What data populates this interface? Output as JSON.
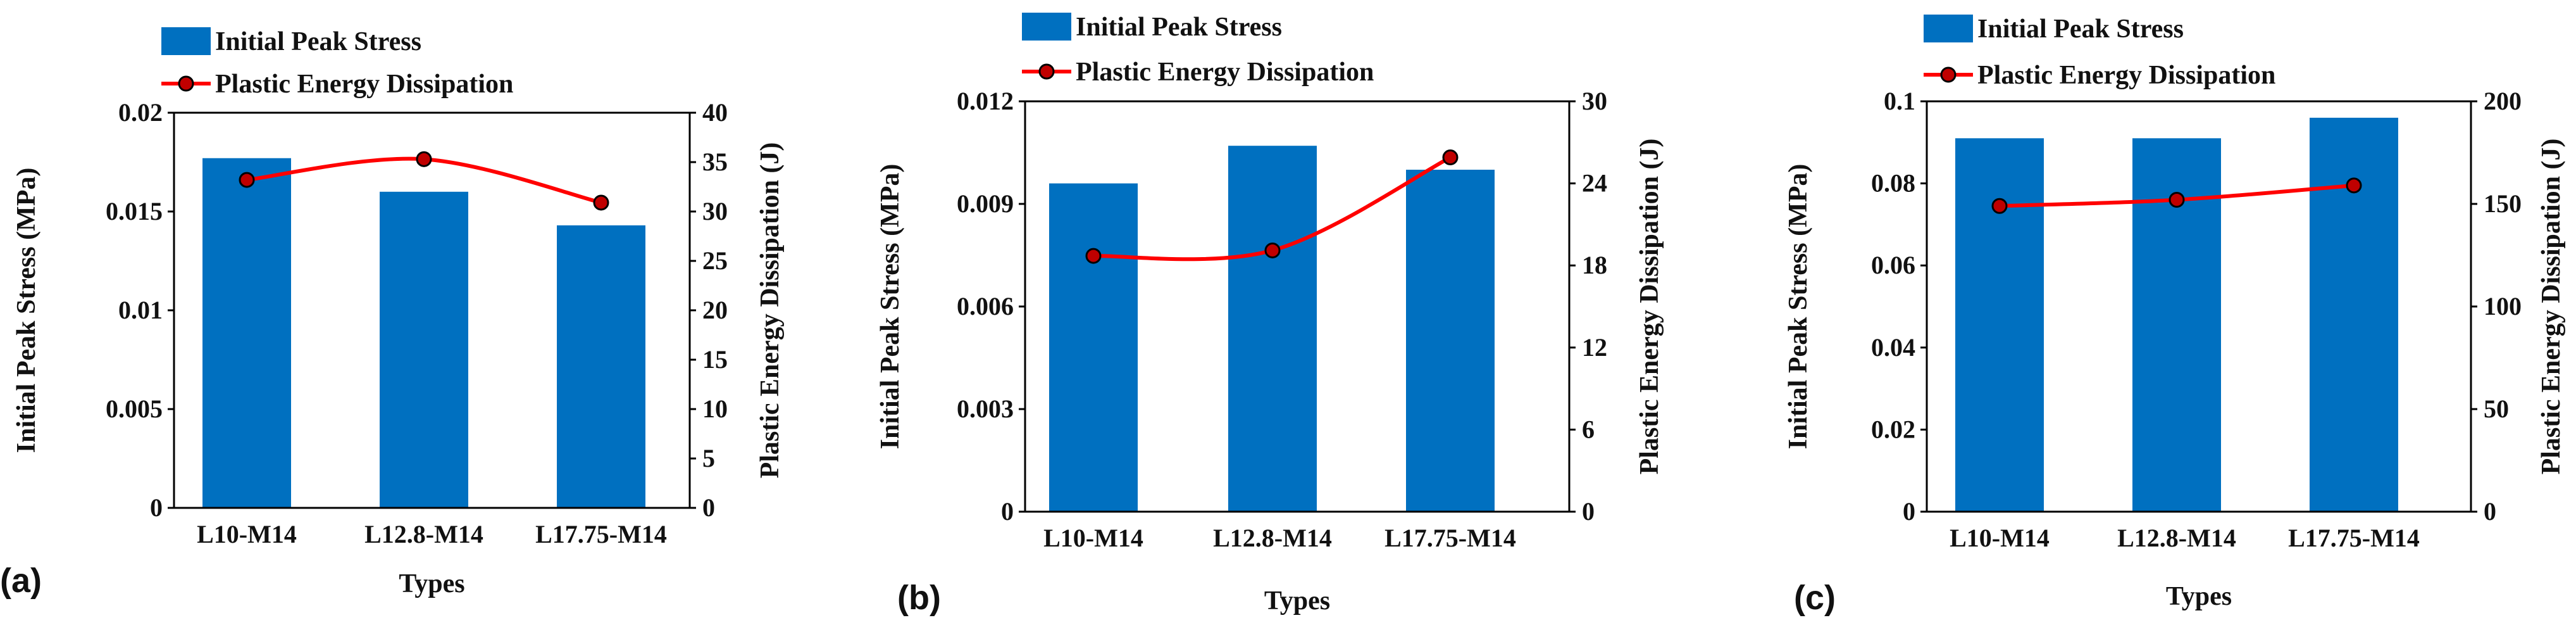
{
  "chart_data": [
    {
      "type": "bar",
      "panel_label": "(a)",
      "categories": [
        "L10-M14",
        "L12.8-M14",
        "L17.75-M14"
      ],
      "series": [
        {
          "name": "Initial Peak Stress",
          "kind": "bar",
          "axis": "left",
          "values": [
            0.0177,
            0.016,
            0.0143
          ]
        },
        {
          "name": "Plastic Energy Dissipation",
          "kind": "line",
          "axis": "right",
          "values": [
            33.2,
            35.3,
            30.9
          ]
        }
      ],
      "xlabel": "Types",
      "ylabel": "Initial Peak Stress (MPa)",
      "y2label": "Plastic Energy Dissipation (J)",
      "ylim": [
        0,
        0.02
      ],
      "y2lim": [
        0,
        40
      ],
      "yticks": [
        "0",
        "0.005",
        "0.01",
        "0.015",
        "0.02"
      ],
      "y2ticks": [
        "0",
        "5",
        "10",
        "15",
        "20",
        "25",
        "30",
        "35",
        "40"
      ],
      "grid": false,
      "legend": "top-left",
      "colors": {
        "bar": "#0070C0",
        "line": "#FF0000",
        "marker": "#C00000"
      }
    },
    {
      "type": "bar",
      "panel_label": "(b)",
      "categories": [
        "L10-M14",
        "L12.8-M14",
        "L17.75-M14"
      ],
      "series": [
        {
          "name": "Initial Peak Stress",
          "kind": "bar",
          "axis": "left",
          "values": [
            0.0096,
            0.0107,
            0.01
          ]
        },
        {
          "name": "Plastic Energy Dissipation",
          "kind": "line",
          "axis": "right",
          "values": [
            18.7,
            19.1,
            25.9
          ]
        }
      ],
      "xlabel": "Types",
      "ylabel": "Initial Peak Stress (MPa)",
      "y2label": "Plastic Energy Dissipation (J)",
      "ylim": [
        0,
        0.012
      ],
      "y2lim": [
        0,
        30
      ],
      "yticks": [
        "0",
        "0.003",
        "0.006",
        "0.009",
        "0.012"
      ],
      "y2ticks": [
        "0",
        "6",
        "12",
        "18",
        "24",
        "30"
      ],
      "grid": false,
      "legend": "top-left",
      "colors": {
        "bar": "#0070C0",
        "line": "#FF0000",
        "marker": "#C00000"
      }
    },
    {
      "type": "bar",
      "panel_label": "(c)",
      "categories": [
        "L10-M14",
        "L12.8-M14",
        "L17.75-M14"
      ],
      "series": [
        {
          "name": "Initial Peak Stress",
          "kind": "bar",
          "axis": "left",
          "values": [
            0.091,
            0.091,
            0.096
          ]
        },
        {
          "name": "Plastic Energy Dissipation",
          "kind": "line",
          "axis": "right",
          "values": [
            149,
            152,
            159
          ]
        }
      ],
      "xlabel": "Types",
      "ylabel": "Initial Peak Stress (MPa)",
      "y2label": "Plastic Energy Dissipation (J)",
      "ylim": [
        0,
        0.1
      ],
      "y2lim": [
        0,
        200
      ],
      "yticks": [
        "0",
        "0.02",
        "0.04",
        "0.06",
        "0.08",
        "0.1"
      ],
      "y2ticks": [
        "0",
        "50",
        "100",
        "150",
        "200"
      ],
      "grid": false,
      "legend": "top-left",
      "colors": {
        "bar": "#0070C0",
        "line": "#FF0000",
        "marker": "#C00000"
      }
    }
  ]
}
